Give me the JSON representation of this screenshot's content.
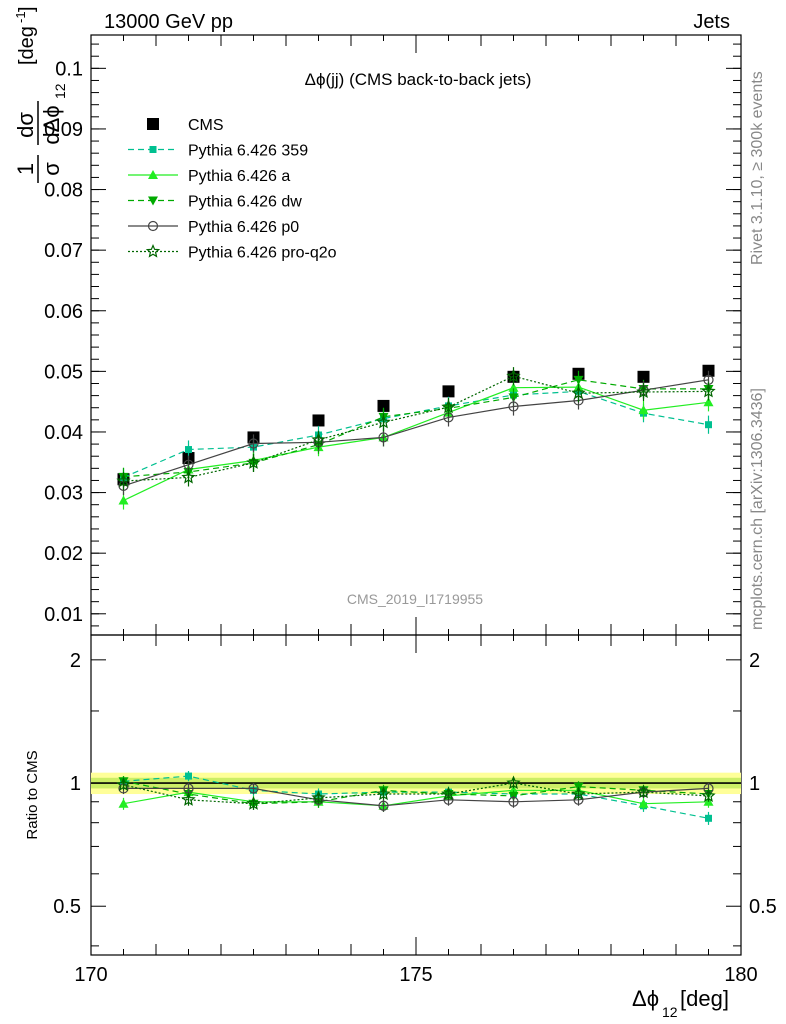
{
  "header": {
    "left": "13000 GeV pp",
    "right": "Jets"
  },
  "side_text": {
    "rivet": "Rivet 3.1.10, ≥ 300k events",
    "source": "mcplots.cern.ch [arXiv:1306.3436]"
  },
  "watermark": "CMS_2019_I1719955",
  "colors": {
    "cms": "#000000",
    "p359": "#00c090",
    "a": "#22ee22",
    "dw": "#00aa00",
    "p0": "#444444",
    "proq2o": "#006600",
    "band_outer": "#ffff99",
    "band_inner": "#ccee66"
  },
  "chart_data": [
    {
      "type": "line",
      "title": "Δϕ(jj) (CMS back-to-back jets)",
      "ylabel": {
        "num": "1",
        "d_sigma": "dσ",
        "sigma": "σ",
        "d_phi": "dΔϕ",
        "sub": "12",
        "unit": "[deg",
        "unit_exp": "-1",
        "unit_close": "]"
      },
      "xlabel": {
        "sym": "Δϕ",
        "sub": "12",
        "unit": " [deg]"
      },
      "xlim": [
        170,
        180
      ],
      "ylim": [
        0.0065,
        0.1055
      ],
      "x_ticks": [
        "170",
        "175",
        "180"
      ],
      "y_ticks": [
        "0.01",
        "0.02",
        "0.03",
        "0.04",
        "0.05",
        "0.06",
        "0.07",
        "0.08",
        "0.09",
        "0.1"
      ],
      "x": [
        170.5,
        171.5,
        172.5,
        173.5,
        174.5,
        175.5,
        176.5,
        177.5,
        178.5,
        179.5
      ],
      "legend_position": "top-left",
      "series": [
        {
          "name": "CMS",
          "key": "cms",
          "values": [
            0.0322,
            0.0357,
            0.0391,
            0.0419,
            0.0443,
            0.0467,
            0.0491,
            0.0496,
            0.0491,
            0.0501
          ],
          "errors": [
            0.0005,
            0.0005,
            0.0005,
            0.0005,
            0.0005,
            0.0005,
            0.0005,
            0.0005,
            0.0005,
            0.0005
          ]
        },
        {
          "name": "Pythia 6.426 359",
          "key": "p359",
          "values": [
            0.0325,
            0.0371,
            0.0375,
            0.0395,
            0.0422,
            0.0443,
            0.0461,
            0.0467,
            0.0431,
            0.0412
          ],
          "errors": [
            0.0015,
            0.0015,
            0.0015,
            0.0015,
            0.0015,
            0.0015,
            0.0015,
            0.0015,
            0.0015,
            0.0015
          ]
        },
        {
          "name": "Pythia 6.426 a",
          "key": "a",
          "values": [
            0.0287,
            0.0338,
            0.0353,
            0.0375,
            0.0391,
            0.0432,
            0.0473,
            0.0474,
            0.0436,
            0.0449
          ],
          "errors": [
            0.0015,
            0.0015,
            0.0015,
            0.0015,
            0.0015,
            0.0015,
            0.0015,
            0.0015,
            0.0015,
            0.0015
          ]
        },
        {
          "name": "Pythia 6.426 dw",
          "key": "dw",
          "values": [
            0.0326,
            0.0334,
            0.0349,
            0.0379,
            0.0425,
            0.0439,
            0.0457,
            0.0486,
            0.0471,
            0.0471
          ],
          "errors": [
            0.0015,
            0.0015,
            0.0015,
            0.0015,
            0.0015,
            0.0015,
            0.0015,
            0.0015,
            0.0015,
            0.0015
          ]
        },
        {
          "name": "Pythia 6.426 p0",
          "key": "p0",
          "values": [
            0.0311,
            0.0346,
            0.0381,
            0.0383,
            0.0391,
            0.0424,
            0.0442,
            0.0452,
            0.0469,
            0.0486
          ],
          "errors": [
            0.0015,
            0.0015,
            0.0015,
            0.0015,
            0.0015,
            0.0015,
            0.0015,
            0.0015,
            0.0015,
            0.0015
          ]
        },
        {
          "name": "Pythia 6.426 pro-q2o",
          "key": "proq2o",
          "values": [
            0.0319,
            0.0325,
            0.0349,
            0.0387,
            0.0416,
            0.0441,
            0.0492,
            0.0464,
            0.0466,
            0.0467
          ],
          "errors": [
            0.0015,
            0.0015,
            0.0015,
            0.0015,
            0.0015,
            0.0015,
            0.0015,
            0.0015,
            0.0015,
            0.0015
          ]
        }
      ]
    },
    {
      "type": "line",
      "ylabel": "Ratio to CMS",
      "scale": "log",
      "ylim": [
        0.38,
        2.3
      ],
      "y_ticks": [
        "0.5",
        "1",
        "2"
      ],
      "y_tick_values": [
        0.5,
        1,
        2
      ],
      "band_outer": 0.06,
      "band_inner": 0.03,
      "x": [
        170.5,
        171.5,
        172.5,
        173.5,
        174.5,
        175.5,
        176.5,
        177.5,
        178.5,
        179.5
      ],
      "series": [
        {
          "name": "Pythia 6.426 359",
          "key": "p359",
          "values": [
            1.01,
            1.04,
            0.96,
            0.94,
            0.95,
            0.95,
            0.94,
            0.94,
            0.88,
            0.82
          ],
          "errors": [
            0.03,
            0.03,
            0.03,
            0.03,
            0.03,
            0.03,
            0.03,
            0.03,
            0.03,
            0.03
          ]
        },
        {
          "name": "Pythia 6.426 a",
          "key": "a",
          "values": [
            0.89,
            0.95,
            0.9,
            0.9,
            0.88,
            0.93,
            0.96,
            0.96,
            0.89,
            0.9
          ],
          "errors": [
            0.03,
            0.03,
            0.03,
            0.03,
            0.03,
            0.03,
            0.03,
            0.03,
            0.03,
            0.03
          ]
        },
        {
          "name": "Pythia 6.426 dw",
          "key": "dw",
          "values": [
            1.01,
            0.94,
            0.89,
            0.9,
            0.96,
            0.94,
            0.93,
            0.98,
            0.96,
            0.94
          ],
          "errors": [
            0.03,
            0.03,
            0.03,
            0.03,
            0.03,
            0.03,
            0.03,
            0.03,
            0.03,
            0.03
          ]
        },
        {
          "name": "Pythia 6.426 p0",
          "key": "p0",
          "values": [
            0.97,
            0.97,
            0.97,
            0.91,
            0.88,
            0.91,
            0.9,
            0.91,
            0.95,
            0.97
          ],
          "errors": [
            0.03,
            0.03,
            0.03,
            0.03,
            0.03,
            0.03,
            0.03,
            0.03,
            0.03,
            0.03
          ]
        },
        {
          "name": "Pythia 6.426 pro-q2o",
          "key": "proq2o",
          "values": [
            0.99,
            0.91,
            0.89,
            0.92,
            0.94,
            0.94,
            1.0,
            0.94,
            0.95,
            0.93
          ],
          "errors": [
            0.03,
            0.03,
            0.03,
            0.03,
            0.03,
            0.03,
            0.03,
            0.03,
            0.03,
            0.03
          ]
        }
      ]
    }
  ]
}
